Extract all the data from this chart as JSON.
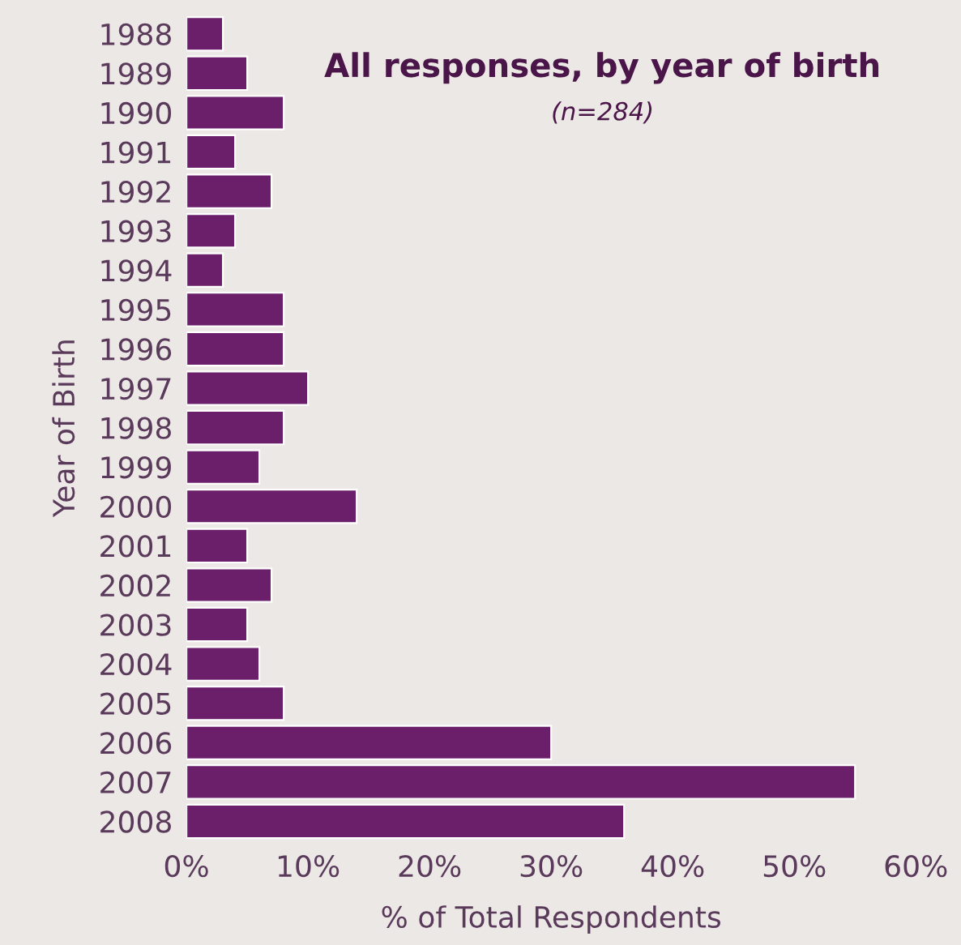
{
  "chart_data": {
    "type": "bar",
    "orientation": "horizontal",
    "title": "All responses, by year of birth",
    "subtitle": "(n=284)",
    "xlabel": "% of Total Respondents",
    "ylabel": "Year of Birth",
    "categories": [
      "1988",
      "1989",
      "1990",
      "1991",
      "1992",
      "1993",
      "1994",
      "1995",
      "1996",
      "1997",
      "1998",
      "1999",
      "2000",
      "2001",
      "2002",
      "2003",
      "2004",
      "2005",
      "2006",
      "2007",
      "2008"
    ],
    "values": [
      3,
      5,
      8,
      4,
      7,
      4,
      3,
      8,
      8,
      10,
      8,
      6,
      14,
      5,
      7,
      5,
      6,
      8,
      30,
      55,
      36
    ],
    "color": "#6b1f6b",
    "xlim": [
      0,
      60
    ],
    "xticks": [
      {
        "value": 0,
        "label": "0%"
      },
      {
        "value": 10,
        "label": "10%"
      },
      {
        "value": 20,
        "label": "20%"
      },
      {
        "value": 30,
        "label": "30%"
      },
      {
        "value": 40,
        "label": "40%"
      },
      {
        "value": 50,
        "label": "50%"
      },
      {
        "value": 60,
        "label": "60%"
      }
    ],
    "grid": false,
    "legend": false
  }
}
